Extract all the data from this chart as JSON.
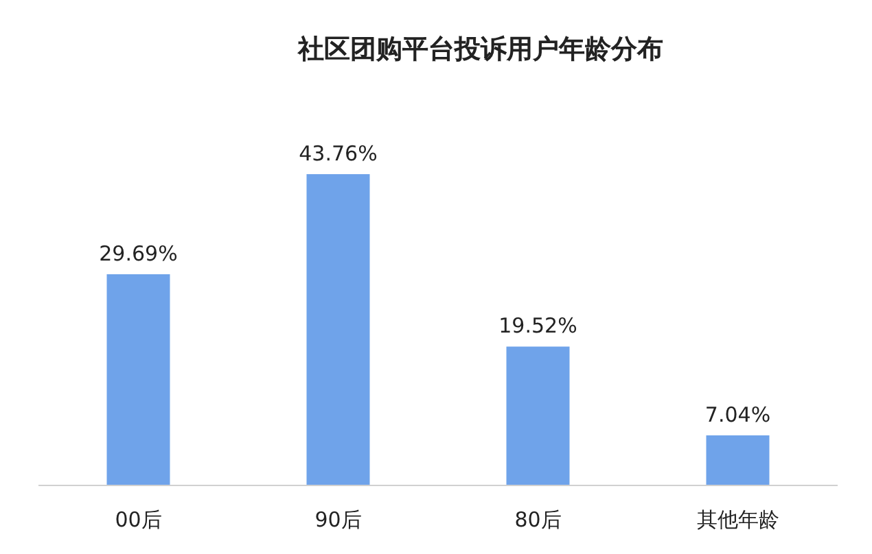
{
  "chart_data": {
    "type": "bar",
    "title": "社区团购平台投诉用户年龄分布",
    "categories": [
      "00后",
      "90后",
      "80后",
      "其他年龄"
    ],
    "values": [
      29.69,
      43.76,
      19.52,
      7.04
    ],
    "value_labels": [
      "29.69%",
      "43.76%",
      "19.52%",
      "7.04%"
    ],
    "color": "#6fa3ea"
  }
}
